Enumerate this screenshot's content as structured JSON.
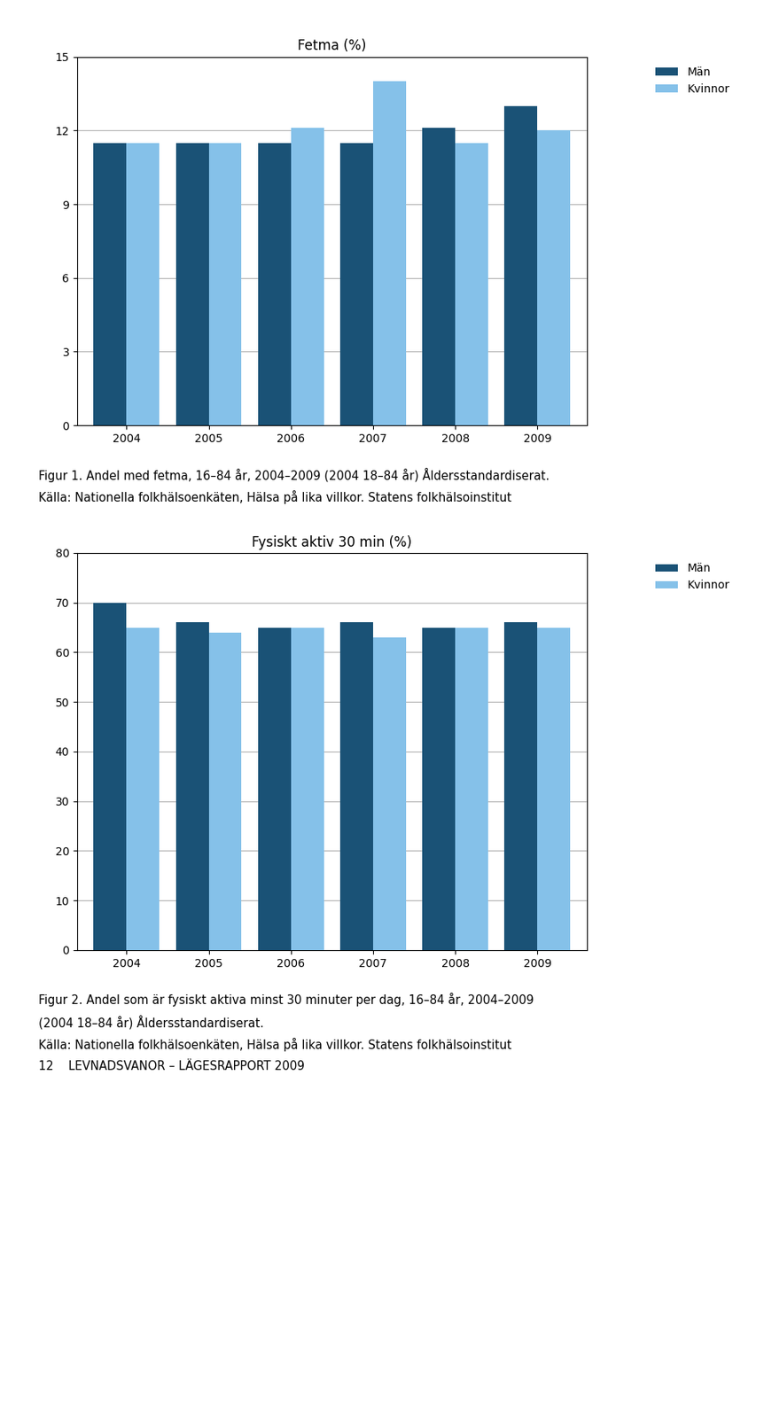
{
  "chart_data": [
    {
      "type": "bar",
      "title": "Fetma (%)",
      "categories": [
        "2004",
        "2005",
        "2006",
        "2007",
        "2008",
        "2009"
      ],
      "series": [
        {
          "name": "Män",
          "color": "#1a5276",
          "values": [
            11.5,
            11.5,
            11.5,
            11.5,
            12.1,
            13.0
          ]
        },
        {
          "name": "Kvinnor",
          "color": "#85c1e9",
          "values": [
            11.5,
            11.5,
            12.1,
            14.0,
            11.5,
            12.0
          ]
        }
      ],
      "ylim": [
        0,
        15
      ],
      "yticks": [
        0,
        3,
        6,
        9,
        12,
        15
      ],
      "grid": true,
      "legend": "upper right",
      "annotations": [
        "Figur 1. Andel med fetma, 16–84 år, 2004–2009 (2004 18–84 år) Åldersstandardiserat.",
        "Källa: Nationella folkhälsoenkäten, Hälsa på lika villkor. Statens folkhälsoinstitut"
      ]
    },
    {
      "type": "bar",
      "title": "Fysiskt aktiv 30 min (%)",
      "categories": [
        "2004",
        "2005",
        "2006",
        "2007",
        "2008",
        "2009"
      ],
      "series": [
        {
          "name": "Män",
          "color": "#1a5276",
          "values": [
            70,
            66,
            65,
            66,
            65,
            66
          ]
        },
        {
          "name": "Kvinnor",
          "color": "#85c1e9",
          "values": [
            65,
            64,
            65,
            63,
            65,
            65
          ]
        }
      ],
      "ylim": [
        0,
        80
      ],
      "yticks": [
        0,
        10,
        20,
        30,
        40,
        50,
        60,
        70,
        80
      ],
      "grid": true,
      "legend": "upper right",
      "annotations": [
        "Figur 2. Andel som är fysiskt aktiva minst 30 minuter per dag, 16–84 år, 2004–2009",
        "(2004 18–84 år) Åldersstandardiserat.",
        "Källa: Nationella folkhälsoenkäten, Hälsa på lika villkor. Statens folkhälsoinstitut",
        "12    LEVNADSVANOR – LÄGESRAPPORT 2009"
      ]
    }
  ]
}
